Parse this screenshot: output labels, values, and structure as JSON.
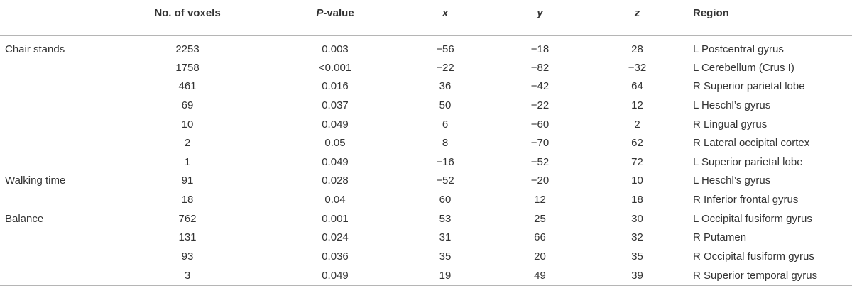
{
  "headers": {
    "group": "",
    "voxels": "No. of voxels",
    "p_italic": "P",
    "p_rest": "-value",
    "x": "x",
    "y": "y",
    "z": "z",
    "region": "Region"
  },
  "rows": [
    {
      "group": "Chair stands",
      "voxels": "2253",
      "p": "0.003",
      "x": "−56",
      "y": "−18",
      "z": "28",
      "region": "L Postcentral gyrus"
    },
    {
      "group": "",
      "voxels": "1758",
      "p": "<0.001",
      "x": "−22",
      "y": "−82",
      "z": "−32",
      "region": "L Cerebellum (Crus I)"
    },
    {
      "group": "",
      "voxels": "461",
      "p": "0.016",
      "x": "36",
      "y": "−42",
      "z": "64",
      "region": "R Superior parietal lobe"
    },
    {
      "group": "",
      "voxels": "69",
      "p": "0.037",
      "x": "50",
      "y": "−22",
      "z": "12",
      "region": "L Heschl’s gyrus"
    },
    {
      "group": "",
      "voxels": "10",
      "p": "0.049",
      "x": "6",
      "y": "−60",
      "z": "2",
      "region": "R Lingual gyrus"
    },
    {
      "group": "",
      "voxels": "2",
      "p": "0.05",
      "x": "8",
      "y": "−70",
      "z": "62",
      "region": "R Lateral occipital cortex"
    },
    {
      "group": "",
      "voxels": "1",
      "p": "0.049",
      "x": "−16",
      "y": "−52",
      "z": "72",
      "region": "L Superior parietal lobe"
    },
    {
      "group": "Walking time",
      "voxels": "91",
      "p": "0.028",
      "x": "−52",
      "y": "−20",
      "z": "10",
      "region": "L Heschl’s gyrus"
    },
    {
      "group": "",
      "voxels": "18",
      "p": "0.04",
      "x": "60",
      "y": "12",
      "z": "18",
      "region": "R Inferior frontal gyrus"
    },
    {
      "group": "Balance",
      "voxels": "762",
      "p": "0.001",
      "x": "53",
      "y": "25",
      "z": "30",
      "region": "L Occipital fusiform gyrus"
    },
    {
      "group": "",
      "voxels": "131",
      "p": "0.024",
      "x": "31",
      "y": "66",
      "z": "32",
      "region": "R Putamen"
    },
    {
      "group": "",
      "voxels": "93",
      "p": "0.036",
      "x": "35",
      "y": "20",
      "z": "35",
      "region": "R Occipital fusiform gyrus"
    },
    {
      "group": "",
      "voxels": "3",
      "p": "0.049",
      "x": "19",
      "y": "49",
      "z": "39",
      "region": "R Superior temporal gyrus"
    }
  ]
}
